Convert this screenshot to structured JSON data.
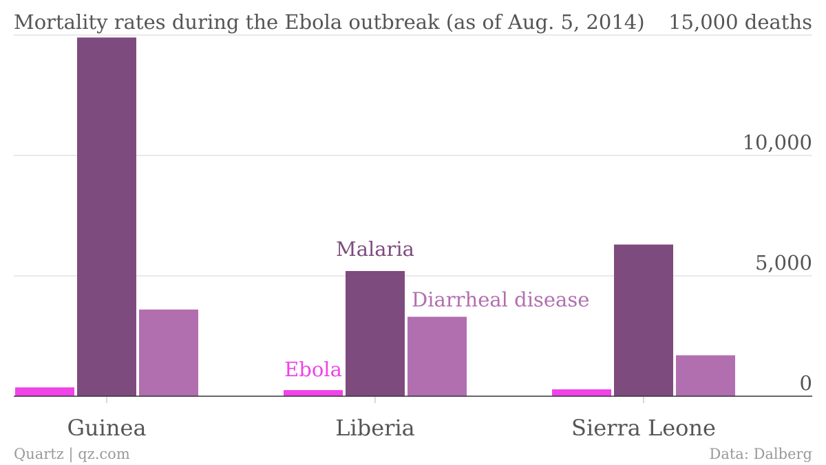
{
  "chart_data": {
    "type": "bar",
    "title": "Mortality rates during the Ebola outbreak (as of Aug. 5, 2014)",
    "categories": [
      "Guinea",
      "Liberia",
      "Sierra Leone"
    ],
    "series": [
      {
        "name": "Ebola",
        "values": [
          367,
          255,
          286
        ],
        "color": "#f043e8"
      },
      {
        "name": "Malaria",
        "values": [
          14900,
          5200,
          6300
        ],
        "color": "#7e4b7e"
      },
      {
        "name": "Diarrheal disease",
        "values": [
          3600,
          3300,
          1700
        ],
        "color": "#b16fb0"
      }
    ],
    "ylim": [
      0,
      15000
    ],
    "yticks": [
      {
        "value": 0,
        "label": "0"
      },
      {
        "value": 5000,
        "label": "5,000"
      },
      {
        "value": 10000,
        "label": "10,000"
      },
      {
        "value": 15000,
        "label": "15,000 deaths"
      }
    ],
    "grid": true,
    "legend_placement": "inline labels over Liberia group",
    "axis_color": "#333333",
    "grid_color": "#e2e2e2"
  },
  "footer": {
    "source_left": "Quartz | qz.com",
    "source_right": "Data: Dalberg"
  }
}
